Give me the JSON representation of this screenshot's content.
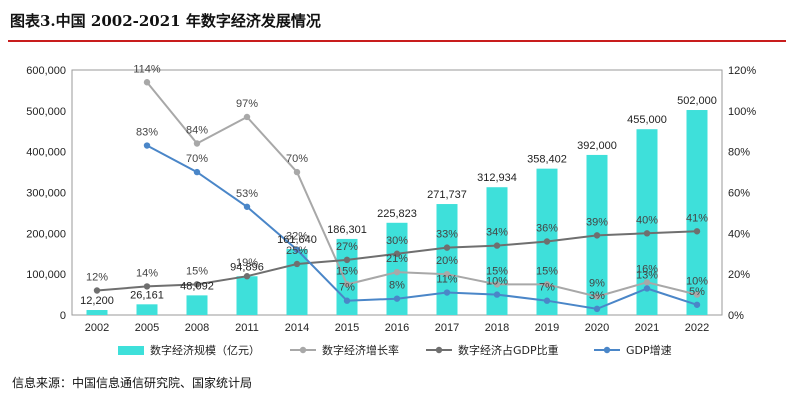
{
  "title": "图表3.中国 2002-2021 年数字经济发展情况",
  "source": "信息来源：中国信息通信研究院、国家统计局",
  "colors": {
    "bar": "#3ee0da",
    "growth": "#a8a8a8",
    "share": "#6f6f6f",
    "gdp": "#4a86c8",
    "rule": "#c81d1d"
  },
  "chart_data": {
    "type": "bar",
    "categories": [
      "2002",
      "2005",
      "2008",
      "2011",
      "2014",
      "2015",
      "2016",
      "2017",
      "2018",
      "2019",
      "2020",
      "2021",
      "2022"
    ],
    "ylim": [
      0,
      600000
    ],
    "y2lim": [
      0,
      1.2
    ],
    "y_ticks": [
      "0",
      "100,000",
      "200,000",
      "300,000",
      "400,000",
      "500,000",
      "600,000"
    ],
    "y2_ticks": [
      "0%",
      "20%",
      "40%",
      "60%",
      "80%",
      "100%",
      "120%"
    ],
    "series": [
      {
        "name": "数字经济规模（亿元）",
        "type": "bar",
        "axis": "left",
        "values": [
          12200,
          26161,
          48092,
          94896,
          161640,
          186301,
          225823,
          271737,
          312934,
          358402,
          392000,
          455000,
          502000
        ],
        "labels": [
          "12,200",
          "26,161",
          "48,092",
          "94,896",
          "161,640",
          "186,301",
          "225,823",
          "271,737",
          "312,934",
          "358,402",
          "392,000",
          "455,000",
          "502,000"
        ]
      },
      {
        "name": "数字经济增长率",
        "type": "line",
        "axis": "right",
        "values": [
          null,
          1.14,
          0.84,
          0.97,
          0.7,
          0.15,
          0.21,
          0.2,
          0.15,
          0.15,
          0.09,
          0.16,
          0.1
        ],
        "labels": [
          "",
          "114%",
          "84%",
          "97%",
          "70%",
          "15%",
          "21%",
          "20%",
          "15%",
          "15%",
          "9%",
          "16%",
          "10%"
        ]
      },
      {
        "name": "数字经济占GDP比重",
        "type": "line",
        "axis": "right",
        "values": [
          0.12,
          0.14,
          0.15,
          0.19,
          0.25,
          0.27,
          0.3,
          0.33,
          0.34,
          0.36,
          0.39,
          0.4,
          0.41
        ],
        "labels": [
          "12%",
          "14%",
          "15%",
          "19%",
          "25%",
          "27%",
          "30%",
          "33%",
          "34%",
          "36%",
          "39%",
          "40%",
          "41%"
        ]
      },
      {
        "name": "GDP增速",
        "type": "line",
        "axis": "right",
        "values": [
          null,
          0.83,
          0.7,
          0.53,
          0.32,
          0.07,
          0.08,
          0.11,
          0.1,
          0.07,
          0.03,
          0.13,
          0.05
        ],
        "labels": [
          "",
          "83%",
          "70%",
          "53%",
          "32%",
          "7%",
          "8%",
          "11%",
          "10%",
          "7%",
          "3%",
          "13%",
          "5%"
        ]
      }
    ]
  }
}
